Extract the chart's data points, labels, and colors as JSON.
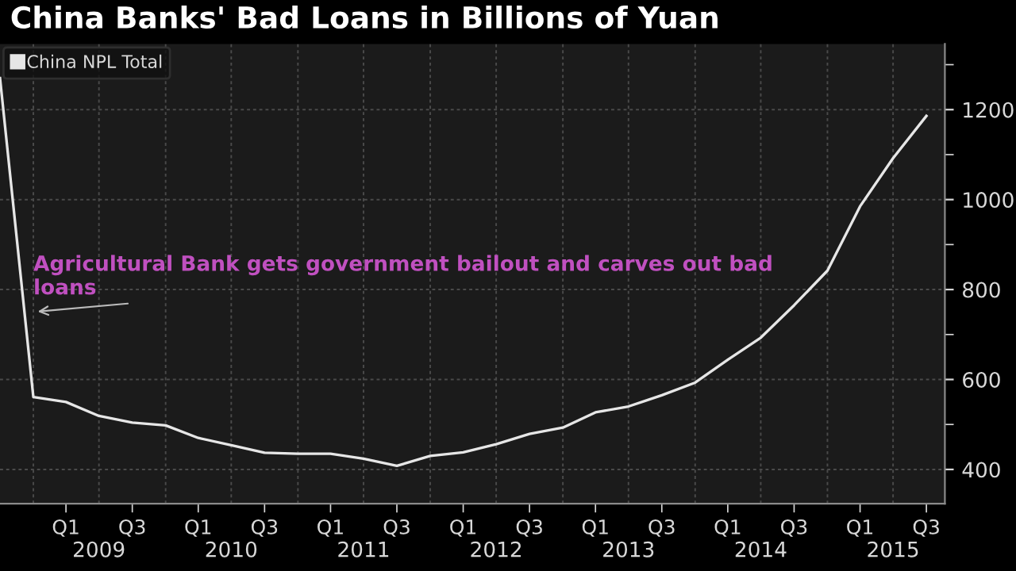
{
  "chart_data": {
    "type": "line",
    "title": "China Banks' Bad Loans in Billions of Yuan",
    "x": [
      "2008-09-30",
      "2008-12-31",
      "2009-03-31",
      "2009-06-30",
      "2009-09-30",
      "2009-12-31",
      "2010-03-31",
      "2010-06-30",
      "2010-09-30",
      "2010-12-31",
      "2011-03-31",
      "2011-06-30",
      "2011-09-30",
      "2011-12-31",
      "2012-03-31",
      "2012-06-30",
      "2012-09-30",
      "2012-12-31",
      "2013-03-31",
      "2013-06-30",
      "2013-09-30",
      "2013-12-31",
      "2014-03-31",
      "2014-06-30",
      "2014-09-30",
      "2014-12-31",
      "2015-03-31",
      "2015-06-30",
      "2015-09-30"
    ],
    "series": [
      {
        "name": "China NPL Total",
        "color": "#e6e6e6",
        "values": [
          1270,
          561,
          550,
          519,
          504,
          498,
          470,
          454,
          437,
          435,
          435,
          424,
          408,
          430,
          438,
          456,
          479,
          493,
          527,
          540,
          565,
          593,
          644,
          693,
          765,
          842,
          985,
          1092,
          1186
        ]
      }
    ],
    "xlim": [
      "2008-09-30",
      "2015-11-20"
    ],
    "xticks": [
      {
        "value": "2008-12-31",
        "label": null
      },
      {
        "value": "2009-03-31",
        "label": "Q1"
      },
      {
        "value": "2009-06-30",
        "label": null
      },
      {
        "value": "2009-09-30",
        "label": "Q3"
      },
      {
        "value": "2009-12-31",
        "label": null
      },
      {
        "value": "2010-03-31",
        "label": "Q1"
      },
      {
        "value": "2010-06-30",
        "label": null
      },
      {
        "value": "2010-09-30",
        "label": "Q3"
      },
      {
        "value": "2010-12-31",
        "label": null
      },
      {
        "value": "2011-03-31",
        "label": "Q1"
      },
      {
        "value": "2011-06-30",
        "label": null
      },
      {
        "value": "2011-09-30",
        "label": "Q3"
      },
      {
        "value": "2011-12-31",
        "label": null
      },
      {
        "value": "2012-03-31",
        "label": "Q1"
      },
      {
        "value": "2012-06-30",
        "label": null
      },
      {
        "value": "2012-09-30",
        "label": "Q3"
      },
      {
        "value": "2012-12-31",
        "label": null
      },
      {
        "value": "2013-03-31",
        "label": "Q1"
      },
      {
        "value": "2013-06-30",
        "label": null
      },
      {
        "value": "2013-09-30",
        "label": "Q3"
      },
      {
        "value": "2013-12-31",
        "label": null
      },
      {
        "value": "2014-03-31",
        "label": "Q1"
      },
      {
        "value": "2014-06-30",
        "label": null
      },
      {
        "value": "2014-09-30",
        "label": "Q3"
      },
      {
        "value": "2014-12-31",
        "label": null
      },
      {
        "value": "2015-03-31",
        "label": "Q1"
      },
      {
        "value": "2015-06-30",
        "label": null
      },
      {
        "value": "2015-09-30",
        "label": "Q3"
      }
    ],
    "x2lim": [
      "2008-09-30",
      "2015-11-20"
    ],
    "x2ticks": [
      {
        "value": "2009-06-30",
        "label": "2009"
      },
      {
        "value": "2010-06-30",
        "label": "2010"
      },
      {
        "value": "2011-06-30",
        "label": "2011"
      },
      {
        "value": "2012-06-30",
        "label": "2012"
      },
      {
        "value": "2013-06-30",
        "label": "2013"
      },
      {
        "value": "2014-06-30",
        "label": "2014"
      },
      {
        "value": "2015-06-30",
        "label": "2015"
      }
    ],
    "ylim": [
      324,
      1346
    ],
    "yticks": [
      400,
      {
        "value": 500,
        "label": null
      },
      600,
      {
        "value": 700,
        "label": null
      },
      800,
      {
        "value": 900,
        "label": null
      },
      1000,
      {
        "value": 1100,
        "label": null
      },
      1200,
      {
        "value": 1300,
        "label": null
      }
    ],
    "annotations": [
      {
        "text": "Agricultural Bank gets government bailout and carves out bad loans",
        "x": "2008-12-31",
        "y": 750
      }
    ],
    "grid": true,
    "legend": "top left",
    "marker": "none",
    "line_style": "solid"
  }
}
